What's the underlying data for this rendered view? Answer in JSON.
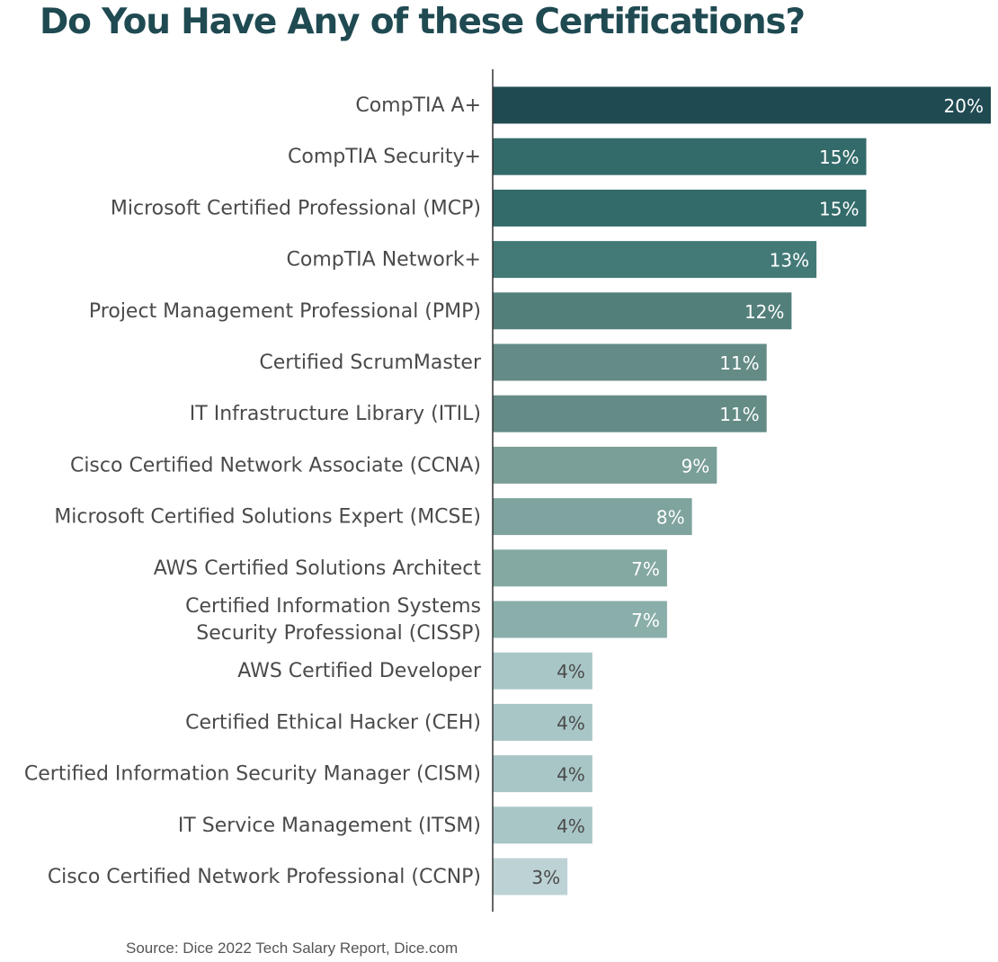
{
  "title": "Do You Have Any of these Certifications?",
  "source": "Source: Dice 2022 Tech Salary Report, Dice.com",
  "chart_data": {
    "type": "bar",
    "orientation": "horizontal",
    "title": "Do You Have Any of these Certifications?",
    "xlabel": "",
    "ylabel": "",
    "xlim": [
      0,
      20
    ],
    "grid": false,
    "legend": "none",
    "value_suffix": "%",
    "categories": [
      [
        "CompTIA A+"
      ],
      [
        "CompTIA Security+"
      ],
      [
        "Microsoft Certified Professional (MCP)"
      ],
      [
        "CompTIA Network+"
      ],
      [
        "Project Management Professional (PMP)"
      ],
      [
        "Certified ScrumMaster"
      ],
      [
        "IT Infrastructure Library (ITIL)"
      ],
      [
        "Cisco Certified Network Associate (CCNA)"
      ],
      [
        "Microsoft Certified Solutions Expert (MCSE)"
      ],
      [
        "AWS Certified Solutions Architect"
      ],
      [
        "Certified Information Systems",
        "Security Professional (CISSP)"
      ],
      [
        "AWS Certified Developer"
      ],
      [
        "Certified Ethical Hacker (CEH)"
      ],
      [
        "Certified Information Security Manager (CISM)"
      ],
      [
        "IT Service Management (ITSM)"
      ],
      [
        "Cisco Certified Network Professional (CCNP)"
      ]
    ],
    "values": [
      20,
      15,
      15,
      13,
      12,
      11,
      11,
      9,
      8,
      7,
      7,
      4,
      4,
      4,
      4,
      3
    ],
    "bar_colors": [
      "#1f4a52",
      "#336a6a",
      "#336a6a",
      "#437a78",
      "#527f7a",
      "#648b86",
      "#648b86",
      "#7a9e98",
      "#7fa39e",
      "#84a8a2",
      "#8aaeaa",
      "#a9c6c7",
      "#a9c6c7",
      "#a9c6c7",
      "#a9c6c7",
      "#bdd2d4"
    ],
    "label_colors": [
      "#ffffff",
      "#ffffff",
      "#ffffff",
      "#ffffff",
      "#ffffff",
      "#ffffff",
      "#ffffff",
      "#ffffff",
      "#ffffff",
      "#ffffff",
      "#ffffff",
      "#4a4a4a",
      "#4a4a4a",
      "#4a4a4a",
      "#4a4a4a",
      "#4a4a4a"
    ],
    "axis_color": "#333333",
    "category_text_color": "#4a4a4a"
  }
}
